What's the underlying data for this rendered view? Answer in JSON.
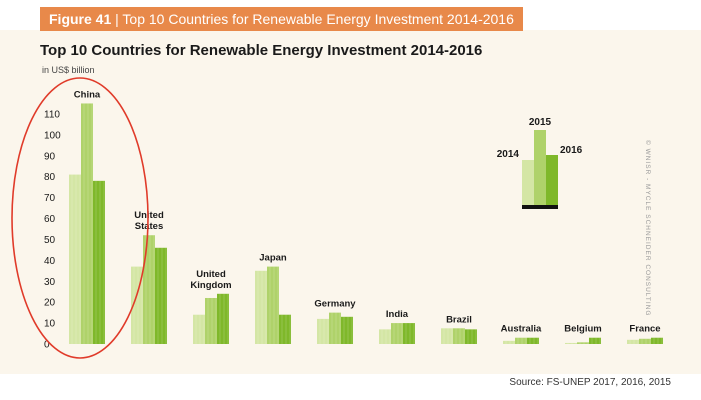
{
  "banner": {
    "figure": "Figure 41",
    "separator": " | ",
    "title": "Top 10 Countries for Renewable Energy Investment 2014-2016"
  },
  "credit": "© WNISR - MYCLE SCHNEIDER CONSULTING",
  "source": "Source: FS-UNEP 2017, 2016, 2015",
  "colors": {
    "y2014": "#d4e6a5",
    "y2015": "#afd26a",
    "y2016": "#7fb82a",
    "highlight": "#e03b2a",
    "legend_base": "#111111",
    "banner": "#e8894a",
    "panel": "#fbf6ec"
  },
  "chart_data": {
    "type": "bar",
    "title": "Top 10 Countries for Renewable Energy Investment 2014-2016",
    "ylabel": "in US$ billion",
    "ylim": [
      0,
      120
    ],
    "yticks": [
      0,
      10,
      20,
      30,
      40,
      50,
      60,
      70,
      80,
      90,
      100,
      110
    ],
    "categories": [
      "China",
      "United\nStates",
      "United\nKingdom",
      "Japan",
      "Germany",
      "India",
      "Brazil",
      "Australia",
      "Belgium",
      "France"
    ],
    "series": [
      {
        "name": "2014",
        "values": [
          81,
          37,
          14,
          35,
          12,
          7,
          7.5,
          1.5,
          0.5,
          2
        ]
      },
      {
        "name": "2015",
        "values": [
          115,
          52,
          22,
          37,
          15,
          10,
          7.5,
          3,
          0.8,
          2.5
        ]
      },
      {
        "name": "2016",
        "values": [
          78,
          46,
          24,
          14,
          13,
          10,
          7,
          3,
          3,
          3
        ]
      }
    ],
    "annotation": "China highlighted with red ellipse",
    "legend": "top-right, bars labeled 2014, 2015, 2016"
  }
}
